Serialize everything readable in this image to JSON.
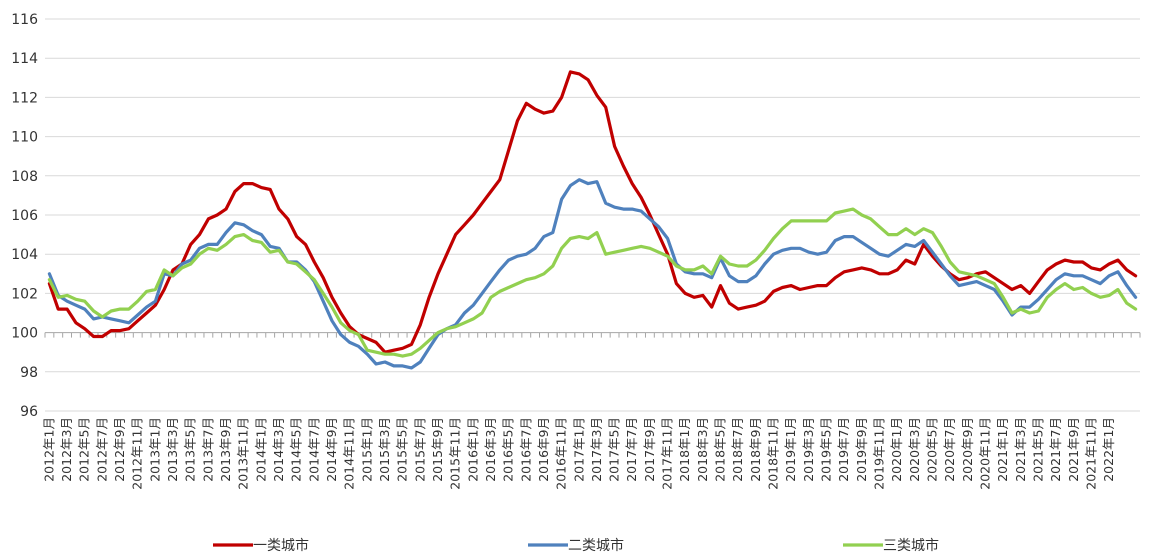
{
  "chart_data": {
    "type": "line",
    "title": "",
    "xlabel": "",
    "ylabel": "",
    "ylim": [
      96,
      116
    ],
    "yticks": [
      96,
      98,
      100,
      102,
      104,
      106,
      108,
      110,
      112,
      114,
      116
    ],
    "grid": "horizontal",
    "legend_position": "bottom",
    "colors": {
      "一类城市": "#C00000",
      "二类城市": "#4F81BD",
      "三类城市": "#92D050"
    },
    "x_labels": [
      "2012年1月",
      "2012年3月",
      "2012年5月",
      "2012年7月",
      "2012年9月",
      "2012年11月",
      "2013年1月",
      "2013年3月",
      "2013年5月",
      "2013年7月",
      "2013年9月",
      "2013年11月",
      "2014年1月",
      "2014年3月",
      "2014年5月",
      "2014年7月",
      "2014年9月",
      "2014年11月",
      "2015年1月",
      "2015年3月",
      "2015年5月",
      "2015年7月",
      "2015年9月",
      "2015年11月",
      "2016年1月",
      "2016年3月",
      "2016年5月",
      "2016年7月",
      "2016年9月",
      "2016年11月",
      "2017年1月",
      "2017年3月",
      "2017年5月",
      "2017年7月",
      "2017年9月",
      "2017年11月",
      "2018年1月",
      "2018年3月",
      "2018年5月",
      "2018年7月",
      "2018年9月",
      "2018年11月",
      "2019年1月",
      "2019年3月",
      "2019年5月",
      "2019年7月",
      "2019年9月",
      "2019年11月",
      "2020年1月",
      "2020年3月",
      "2020年5月",
      "2020年7月",
      "2020年9月",
      "2020年11月",
      "2021年1月",
      "2021年3月",
      "2021年5月",
      "2021年7月",
      "2021年9月",
      "2021年11月",
      "2022年1月"
    ],
    "series": [
      {
        "name": "一类城市",
        "values": [
          102.5,
          101.2,
          101.2,
          100.5,
          100.2,
          99.8,
          99.8,
          100.1,
          100.1,
          100.2,
          100.6,
          101.0,
          101.4,
          102.2,
          103.2,
          103.5,
          104.5,
          105.0,
          105.8,
          106.0,
          106.3,
          107.2,
          107.6,
          107.6,
          107.4,
          107.3,
          106.3,
          105.8,
          104.9,
          104.5,
          103.6,
          102.8,
          101.8,
          101.0,
          100.3,
          99.9,
          99.7,
          99.5,
          99.0,
          99.1,
          99.2,
          99.4,
          100.4,
          101.8,
          103.0,
          104.0,
          105.0,
          105.5,
          106.0,
          106.6,
          107.2,
          107.8,
          109.3,
          110.8,
          111.7,
          111.4,
          111.2,
          111.3,
          112.0,
          113.3,
          113.2,
          112.9,
          112.1,
          111.5,
          109.5,
          108.5,
          107.6,
          106.9,
          106.0,
          105.0,
          104.0,
          102.5,
          102.0,
          101.8,
          101.9,
          101.3,
          102.4,
          101.5,
          101.2,
          101.3,
          101.4,
          101.6,
          102.1,
          102.3,
          102.4,
          102.2,
          102.3,
          102.4,
          102.4,
          102.8,
          103.1,
          103.2,
          103.3,
          103.2,
          103.0,
          103.0,
          103.2,
          103.7,
          103.5,
          104.5,
          103.9,
          103.4,
          103.0,
          102.7,
          102.8,
          103.0,
          103.1,
          102.8,
          102.5,
          102.2,
          102.4,
          102.0,
          102.6,
          103.2,
          103.5,
          103.7,
          103.6,
          103.6,
          103.3,
          103.2,
          103.5,
          103.7,
          103.2,
          102.9
        ]
      },
      {
        "name": "二类城市",
        "values": [
          103.0,
          101.9,
          101.6,
          101.4,
          101.2,
          100.7,
          100.8,
          100.7,
          100.6,
          100.5,
          100.9,
          101.3,
          101.6,
          103.0,
          102.9,
          103.5,
          103.7,
          104.3,
          104.5,
          104.5,
          105.1,
          105.6,
          105.5,
          105.2,
          105.0,
          104.4,
          104.3,
          103.6,
          103.6,
          103.2,
          102.6,
          101.6,
          100.6,
          99.9,
          99.5,
          99.3,
          98.9,
          98.4,
          98.5,
          98.3,
          98.3,
          98.2,
          98.5,
          99.2,
          99.9,
          100.2,
          100.4,
          101.0,
          101.4,
          102.0,
          102.6,
          103.2,
          103.7,
          103.9,
          104.0,
          104.3,
          104.9,
          105.1,
          106.8,
          107.5,
          107.8,
          107.6,
          107.7,
          106.6,
          106.4,
          106.3,
          106.3,
          106.2,
          105.8,
          105.4,
          104.8,
          103.5,
          103.1,
          103.0,
          103.0,
          102.8,
          103.8,
          102.9,
          102.6,
          102.6,
          102.9,
          103.5,
          104.0,
          104.2,
          104.3,
          104.3,
          104.1,
          104.0,
          104.1,
          104.7,
          104.9,
          104.9,
          104.6,
          104.3,
          104.0,
          103.9,
          104.2,
          104.5,
          104.4,
          104.7,
          104.1,
          103.5,
          102.9,
          102.4,
          102.5,
          102.6,
          102.4,
          102.2,
          101.6,
          100.9,
          101.3,
          101.3,
          101.7,
          102.2,
          102.7,
          103.0,
          102.9,
          102.9,
          102.7,
          102.5,
          102.9,
          103.1,
          102.4,
          101.8
        ]
      },
      {
        "name": "三类城市",
        "values": [
          102.7,
          101.8,
          101.9,
          101.7,
          101.6,
          101.1,
          100.8,
          101.1,
          101.2,
          101.2,
          101.6,
          102.1,
          102.2,
          103.2,
          102.9,
          103.3,
          103.5,
          104.0,
          104.3,
          104.2,
          104.5,
          104.9,
          105.0,
          104.7,
          104.6,
          104.1,
          104.2,
          103.6,
          103.5,
          103.1,
          102.7,
          102.0,
          101.3,
          100.5,
          100.1,
          99.9,
          99.1,
          99.0,
          98.9,
          98.9,
          98.8,
          98.9,
          99.2,
          99.6,
          100.0,
          100.2,
          100.3,
          100.5,
          100.7,
          101.0,
          101.8,
          102.1,
          102.3,
          102.5,
          102.7,
          102.8,
          103.0,
          103.4,
          104.3,
          104.8,
          104.9,
          104.8,
          105.1,
          104.0,
          104.1,
          104.2,
          104.3,
          104.4,
          104.3,
          104.1,
          103.9,
          103.4,
          103.2,
          103.2,
          103.4,
          103.0,
          103.9,
          103.5,
          103.4,
          103.4,
          103.7,
          104.2,
          104.8,
          105.3,
          105.7,
          105.7,
          105.7,
          105.7,
          105.7,
          106.1,
          106.2,
          106.3,
          106.0,
          105.8,
          105.4,
          105.0,
          105.0,
          105.3,
          105.0,
          105.3,
          105.1,
          104.4,
          103.6,
          103.1,
          103.0,
          102.9,
          102.7,
          102.5,
          101.8,
          101.0,
          101.2,
          101.0,
          101.1,
          101.8,
          102.2,
          102.5,
          102.2,
          102.3,
          102.0,
          101.8,
          101.9,
          102.2,
          101.5,
          101.2
        ]
      }
    ]
  }
}
